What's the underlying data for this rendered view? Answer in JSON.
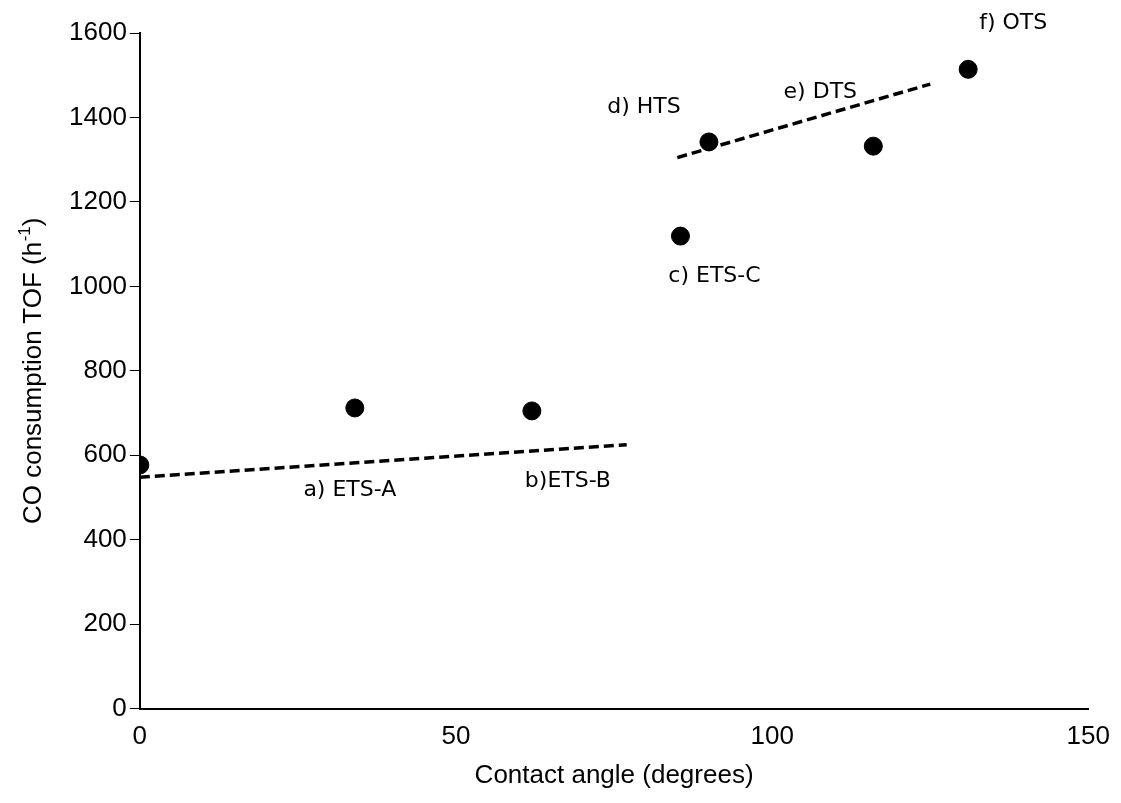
{
  "chart_data": {
    "type": "scatter",
    "xlabel": "Contact angle (degrees)",
    "ylabel": "CO consumption TOF (h$^{-1}$)",
    "xlim": [
      0,
      150
    ],
    "xticks": [
      0,
      50,
      100,
      150
    ],
    "ylim": [
      0,
      1600
    ],
    "yticks": [
      0,
      200,
      400,
      600,
      800,
      1000,
      1200,
      1400,
      1600
    ],
    "grid": false,
    "legend": false,
    "series": [
      {
        "type": "scatter",
        "color": "#000000",
        "marker": "circle",
        "x": [
          0,
          34,
          62,
          85.5,
          90,
          116,
          131
        ],
        "values": [
          577,
          712,
          705,
          1119,
          1342,
          1332,
          1514
        ]
      },
      {
        "type": "line",
        "color": "#000000",
        "line_style": "dashed",
        "marker": "none",
        "x": [
          0,
          77
        ],
        "values": [
          548,
          625
        ]
      },
      {
        "type": "line",
        "color": "#000000",
        "line_style": "dashed",
        "marker": "none",
        "x": [
          85,
          125
        ],
        "values": [
          1305,
          1479
        ]
      }
    ],
    "annotations": [
      "a) ETS-A",
      "b)ETS-B",
      "c) ETS-C",
      "d) HTS",
      "e) DTS",
      "f) OTS"
    ]
  }
}
